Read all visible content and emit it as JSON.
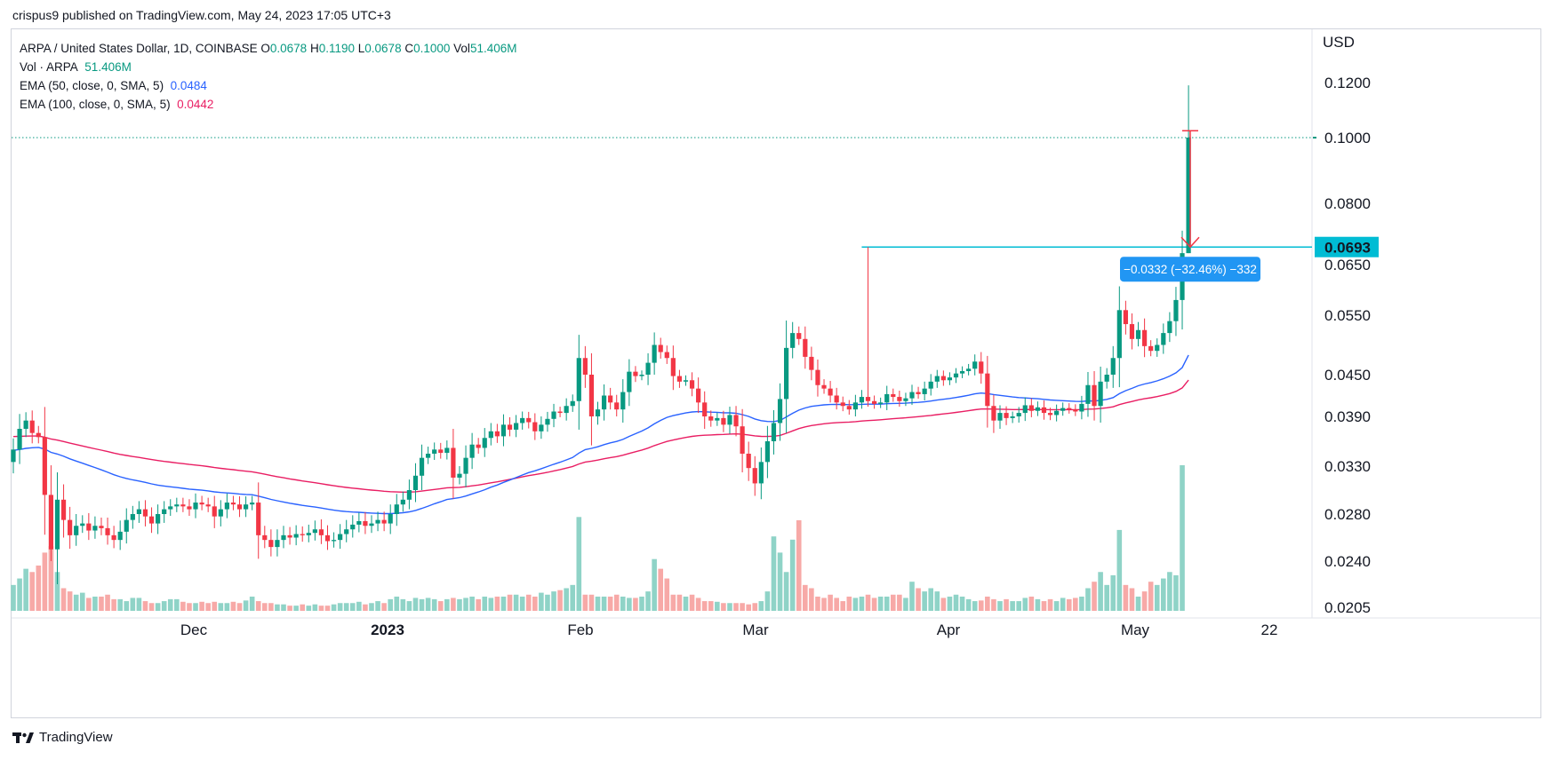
{
  "header": {
    "publisher": "crispus9 published on TradingView.com, May 24, 2023 17:05 UTC+3"
  },
  "legend": {
    "symbol": "ARPA / United States Dollar, 1D, COINBASE",
    "open_label": "O",
    "open": "0.0678",
    "high_label": "H",
    "high": "0.1190",
    "low_label": "L",
    "low": "0.0678",
    "close_label": "C",
    "close": "0.1000",
    "vol_label": "Vol",
    "vol": "51.406M",
    "vol_line_label": "Vol · ARPA",
    "vol_line_value": "51.406M",
    "ema50_label": "EMA (50, close, 0, SMA, 5)",
    "ema50_value": "0.0484",
    "ema100_label": "EMA (100, close, 0, SMA, 5)",
    "ema100_value": "0.0442"
  },
  "footer": {
    "brand": "TradingView",
    "logo_icon": "tradingview-logo-icon"
  },
  "colors": {
    "up": "#089981",
    "down": "#f23645",
    "up_vol": "#8fd3c7",
    "down_vol": "#f7a9a7",
    "ema50": "#2962ff",
    "ema100": "#e91e63",
    "horizontal_line": "#00bcd4",
    "price_badge": "#00bcd4",
    "measure_badge": "#2196f3",
    "arrow": "#f23645"
  },
  "chart_data": {
    "type": "candlestick",
    "currency": "USD",
    "y_ticks": [
      "0.1200",
      "0.1000",
      "0.0800",
      "0.0650",
      "0.0550",
      "0.0450",
      "0.0390",
      "0.0330",
      "0.0280",
      "0.0240",
      "0.0205"
    ],
    "x_labels": [
      "Dec",
      "2023",
      "Feb",
      "Mar",
      "Apr",
      "May",
      "22"
    ],
    "last_price_line": 0.1,
    "horizontal_line": {
      "price": 0.0693,
      "label": "0.0693"
    },
    "measure": {
      "label": "−0.0332 (−32.46%) −332",
      "from": 0.1025,
      "to": 0.0693
    },
    "closes": [
      0.035,
      0.0375,
      0.0385,
      0.037,
      0.0365,
      0.03,
      0.025,
      0.0295,
      0.0275,
      0.0262,
      0.027,
      0.0272,
      0.0266,
      0.027,
      0.0268,
      0.0262,
      0.0258,
      0.0265,
      0.0275,
      0.028,
      0.0285,
      0.0278,
      0.0272,
      0.028,
      0.0285,
      0.0288,
      0.029,
      0.0288,
      0.0285,
      0.0292,
      0.029,
      0.0288,
      0.0278,
      0.0285,
      0.0292,
      0.029,
      0.0285,
      0.029,
      0.0292,
      0.0262,
      0.0258,
      0.0252,
      0.0258,
      0.0262,
      0.026,
      0.0263,
      0.0262,
      0.0264,
      0.0267,
      0.0262,
      0.0257,
      0.0258,
      0.0263,
      0.0267,
      0.0271,
      0.0274,
      0.027,
      0.0272,
      0.0275,
      0.0272,
      0.028,
      0.029,
      0.0295,
      0.0305,
      0.032,
      0.034,
      0.0345,
      0.035,
      0.0346,
      0.0352,
      0.0318,
      0.0322,
      0.034,
      0.0356,
      0.0352,
      0.0364,
      0.0372,
      0.0366,
      0.038,
      0.0374,
      0.0382,
      0.0388,
      0.0383,
      0.0372,
      0.038,
      0.0387,
      0.0397,
      0.0395,
      0.0405,
      0.0412,
      0.0478,
      0.045,
      0.039,
      0.04,
      0.042,
      0.041,
      0.04,
      0.0425,
      0.0455,
      0.0448,
      0.045,
      0.047,
      0.05,
      0.0488,
      0.0478,
      0.0448,
      0.044,
      0.0442,
      0.043,
      0.041,
      0.039,
      0.0385,
      0.0388,
      0.038,
      0.0392,
      0.0378,
      0.0345,
      0.0328,
      0.0312,
      0.0335,
      0.036,
      0.0382,
      0.0415,
      0.0495,
      0.052,
      0.051,
      0.048,
      0.0458,
      0.0435,
      0.043,
      0.042,
      0.041,
      0.0405,
      0.04,
      0.041,
      0.0418,
      0.0412,
      0.0408,
      0.041,
      0.0422,
      0.0418,
      0.0412,
      0.0416,
      0.0425,
      0.0422,
      0.043,
      0.044,
      0.0448,
      0.0442,
      0.0446,
      0.0452,
      0.0456,
      0.046,
      0.0472,
      0.0452,
      0.0405,
      0.0385,
      0.0395,
      0.0388,
      0.039,
      0.0395,
      0.0406,
      0.0398,
      0.0403,
      0.0395,
      0.0392,
      0.0398,
      0.0402,
      0.04,
      0.0397,
      0.0408,
      0.0435,
      0.0405,
      0.044,
      0.045,
      0.0478,
      0.056,
      0.0535,
      0.051,
      0.0525,
      0.0498,
      0.049,
      0.05,
      0.052,
      0.054,
      0.058,
      0.0678,
      0.1
    ],
    "volumes": [
      40,
      50,
      65,
      60,
      70,
      90,
      100,
      60,
      35,
      30,
      25,
      28,
      20,
      22,
      22,
      25,
      18,
      18,
      15,
      20,
      20,
      15,
      12,
      12,
      15,
      18,
      18,
      14,
      12,
      12,
      14,
      12,
      14,
      12,
      12,
      14,
      12,
      16,
      22,
      15,
      12,
      12,
      10,
      10,
      8,
      8,
      10,
      8,
      10,
      8,
      8,
      10,
      12,
      12,
      12,
      14,
      10,
      12,
      15,
      12,
      18,
      22,
      18,
      15,
      20,
      18,
      20,
      18,
      15,
      18,
      20,
      18,
      20,
      22,
      18,
      22,
      20,
      22,
      22,
      25,
      25,
      22,
      25,
      22,
      28,
      25,
      30,
      32,
      35,
      40,
      145,
      25,
      25,
      22,
      22,
      22,
      25,
      22,
      20,
      20,
      22,
      30,
      80,
      65,
      50,
      25,
      25,
      22,
      25,
      20,
      15,
      15,
      14,
      12,
      12,
      12,
      12,
      10,
      12,
      15,
      30,
      115,
      90,
      60,
      110,
      140,
      40,
      35,
      22,
      20,
      25,
      20,
      15,
      22,
      20,
      22,
      25,
      20,
      22,
      22,
      25,
      25,
      20,
      45,
      35,
      30,
      35,
      30,
      20,
      22,
      25,
      22,
      18,
      15,
      16,
      22,
      18,
      15,
      18,
      15,
      15,
      20,
      22,
      18,
      15,
      18,
      15,
      20,
      18,
      20,
      22,
      35,
      45,
      60,
      40,
      55,
      125,
      40,
      35,
      22,
      30,
      45,
      40,
      50,
      60,
      55,
      225
    ]
  }
}
